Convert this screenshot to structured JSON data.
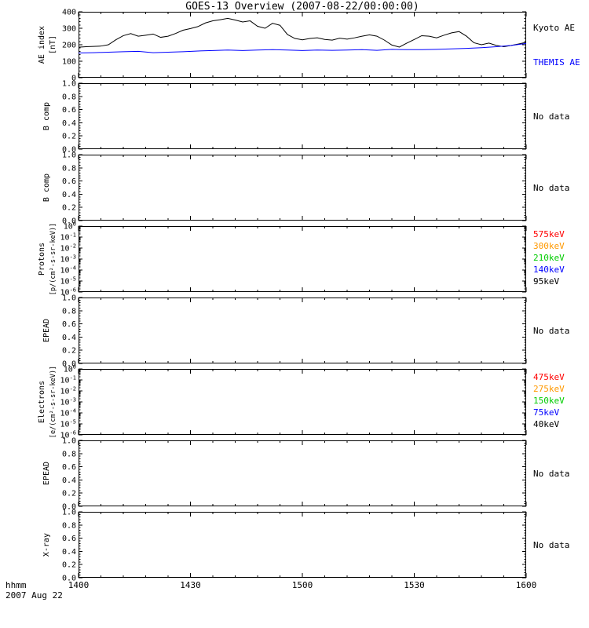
{
  "chart_data": {
    "type": "line",
    "title": "GOES-13 Overview (2007-08-22/00:00:00)",
    "x_axis": {
      "label": "hhmm",
      "date_label": "2007 Aug 22",
      "tick_labels": [
        "1400",
        "1430",
        "1500",
        "1530",
        "1600"
      ],
      "tick_minutes": [
        0,
        30,
        60,
        90,
        120
      ],
      "range_minutes": [
        0,
        120
      ],
      "minor_tick_step_minutes": 6
    },
    "panels": [
      {
        "id": "ae-index",
        "ylabel_lines": [
          "AE index",
          "[nT]"
        ],
        "scale": "linear",
        "ylim": [
          0,
          400
        ],
        "ytick_values": [
          0,
          100,
          200,
          300,
          400
        ],
        "ytick_labels": [
          "0",
          "100",
          "200",
          "300",
          "400"
        ],
        "right_labels": [
          {
            "text": "Kyoto AE",
            "color": "#000000"
          },
          {
            "text": "THEMIS AE",
            "color": "#0000ff"
          }
        ],
        "series": [
          {
            "name": "Kyoto AE",
            "color": "#000000",
            "x_minutes": [
              0,
              2,
              4,
              6,
              8,
              10,
              12,
              14,
              16,
              18,
              20,
              22,
              24,
              26,
              28,
              30,
              32,
              34,
              36,
              38,
              40,
              42,
              44,
              46,
              48,
              50,
              52,
              54,
              56,
              58,
              60,
              62,
              64,
              66,
              68,
              70,
              72,
              74,
              76,
              78,
              80,
              82,
              84,
              86,
              88,
              90,
              92,
              94,
              96,
              98,
              100,
              102,
              104,
              106,
              108,
              110,
              112,
              114,
              116,
              118,
              120
            ],
            "values": [
              185,
              188,
              190,
              192,
              200,
              230,
              255,
              268,
              252,
              258,
              265,
              245,
              252,
              268,
              288,
              298,
              310,
              332,
              345,
              352,
              360,
              350,
              338,
              345,
              312,
              300,
              330,
              318,
              262,
              238,
              230,
              238,
              242,
              232,
              228,
              240,
              234,
              242,
              252,
              260,
              252,
              228,
              198,
              186,
              210,
              232,
              255,
              252,
              242,
              258,
              272,
              280,
              252,
              212,
              200,
              210,
              196,
              188,
              196,
              205,
              215
            ]
          },
          {
            "name": "THEMIS AE",
            "color": "#0000ff",
            "x_minutes": [
              0,
              4,
              8,
              12,
              16,
              20,
              24,
              28,
              32,
              36,
              40,
              44,
              48,
              52,
              56,
              60,
              64,
              68,
              72,
              76,
              80,
              84,
              88,
              92,
              96,
              100,
              104,
              108,
              112,
              116,
              120
            ],
            "values": [
              150,
              152,
              155,
              158,
              160,
              152,
              155,
              158,
              162,
              165,
              168,
              165,
              168,
              170,
              168,
              165,
              168,
              166,
              168,
              170,
              166,
              172,
              170,
              170,
              172,
              175,
              178,
              182,
              188,
              196,
              208
            ]
          }
        ]
      },
      {
        "id": "b-comp-1",
        "ylabel_lines": [
          "B comp"
        ],
        "scale": "linear",
        "ylim": [
          0,
          1
        ],
        "ytick_values": [
          0,
          0.2,
          0.4,
          0.6,
          0.8,
          1
        ],
        "ytick_labels": [
          "0.0",
          "0.2",
          "0.4",
          "0.6",
          "0.8",
          "1.0"
        ],
        "right_labels": [
          {
            "text": "No data",
            "color": "#000000"
          }
        ],
        "series": []
      },
      {
        "id": "b-comp-2",
        "ylabel_lines": [
          "B comp"
        ],
        "scale": "linear",
        "ylim": [
          0,
          1
        ],
        "ytick_values": [
          0,
          0.2,
          0.4,
          0.6,
          0.8,
          1
        ],
        "ytick_labels": [
          "0.0",
          "0.2",
          "0.4",
          "0.6",
          "0.8",
          "1.0"
        ],
        "right_labels": [
          {
            "text": "No data",
            "color": "#000000"
          }
        ],
        "series": []
      },
      {
        "id": "protons",
        "ylabel_lines": [
          "Protons",
          "[p/(cm²-s-sr-keV)]"
        ],
        "scale": "log",
        "ylim_exp": [
          -6,
          0
        ],
        "ytick_exponents": [
          0,
          -1,
          -2,
          -3,
          -4,
          -5,
          -6
        ],
        "right_labels": [
          {
            "text": "575keV",
            "color": "#ff0000"
          },
          {
            "text": "300keV",
            "color": "#ff9900"
          },
          {
            "text": "210keV",
            "color": "#00cc00"
          },
          {
            "text": "140keV",
            "color": "#0000ff"
          },
          {
            "text": "95keV",
            "color": "#000000"
          }
        ],
        "series": []
      },
      {
        "id": "epead-1",
        "ylabel_lines": [
          "EPEAD"
        ],
        "scale": "linear",
        "ylim": [
          0,
          1
        ],
        "ytick_values": [
          0,
          0.2,
          0.4,
          0.6,
          0.8,
          1
        ],
        "ytick_labels": [
          "0.0",
          "0.2",
          "0.4",
          "0.6",
          "0.8",
          "1.0"
        ],
        "right_labels": [
          {
            "text": "No data",
            "color": "#000000"
          }
        ],
        "series": []
      },
      {
        "id": "electrons",
        "ylabel_lines": [
          "Electrons",
          "[e/(cm²-s-sr-keV)]"
        ],
        "scale": "log",
        "ylim_exp": [
          -6,
          0
        ],
        "ytick_exponents": [
          0,
          -1,
          -2,
          -3,
          -4,
          -5,
          -6
        ],
        "right_labels": [
          {
            "text": "475keV",
            "color": "#ff0000"
          },
          {
            "text": "275keV",
            "color": "#ff9900"
          },
          {
            "text": "150keV",
            "color": "#00cc00"
          },
          {
            "text": "75keV",
            "color": "#0000ff"
          },
          {
            "text": "40keV",
            "color": "#000000"
          }
        ],
        "series": []
      },
      {
        "id": "epead-2",
        "ylabel_lines": [
          "EPEAD"
        ],
        "scale": "linear",
        "ylim": [
          0,
          1
        ],
        "ytick_values": [
          0,
          0.2,
          0.4,
          0.6,
          0.8,
          1
        ],
        "ytick_labels": [
          "0.0",
          "0.2",
          "0.4",
          "0.6",
          "0.8",
          "1.0"
        ],
        "right_labels": [
          {
            "text": "No data",
            "color": "#000000"
          }
        ],
        "series": []
      },
      {
        "id": "x-ray",
        "ylabel_lines": [
          "X-ray"
        ],
        "scale": "linear",
        "ylim": [
          0,
          1
        ],
        "ytick_values": [
          0,
          0.2,
          0.4,
          0.6,
          0.8,
          1
        ],
        "ytick_labels": [
          "0.0",
          "0.2",
          "0.4",
          "0.6",
          "0.8",
          "1.0"
        ],
        "right_labels": [
          {
            "text": "No data",
            "color": "#000000"
          }
        ],
        "series": []
      }
    ]
  }
}
